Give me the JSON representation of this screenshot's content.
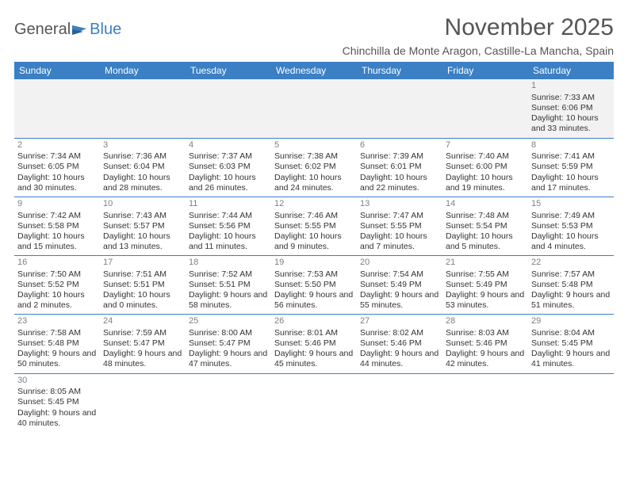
{
  "logo": {
    "text1": "General",
    "text2": "Blue"
  },
  "title": "November 2025",
  "subtitle": "Chinchilla de Monte Aragon, Castille-La Mancha, Spain",
  "columns": [
    "Sunday",
    "Monday",
    "Tuesday",
    "Wednesday",
    "Thursday",
    "Friday",
    "Saturday"
  ],
  "colors": {
    "header_bg": "#3b7fc4",
    "header_text": "#ffffff",
    "line": "#3b7fc4",
    "daynum": "#808080",
    "grey_row": "#f2f2f2"
  },
  "layout": {
    "first_day_column": 6,
    "days_in_month": 30
  },
  "days": {
    "1": {
      "sunrise": "7:33 AM",
      "sunset": "6:06 PM",
      "daylight": "10 hours and 33 minutes."
    },
    "2": {
      "sunrise": "7:34 AM",
      "sunset": "6:05 PM",
      "daylight": "10 hours and 30 minutes."
    },
    "3": {
      "sunrise": "7:36 AM",
      "sunset": "6:04 PM",
      "daylight": "10 hours and 28 minutes."
    },
    "4": {
      "sunrise": "7:37 AM",
      "sunset": "6:03 PM",
      "daylight": "10 hours and 26 minutes."
    },
    "5": {
      "sunrise": "7:38 AM",
      "sunset": "6:02 PM",
      "daylight": "10 hours and 24 minutes."
    },
    "6": {
      "sunrise": "7:39 AM",
      "sunset": "6:01 PM",
      "daylight": "10 hours and 22 minutes."
    },
    "7": {
      "sunrise": "7:40 AM",
      "sunset": "6:00 PM",
      "daylight": "10 hours and 19 minutes."
    },
    "8": {
      "sunrise": "7:41 AM",
      "sunset": "5:59 PM",
      "daylight": "10 hours and 17 minutes."
    },
    "9": {
      "sunrise": "7:42 AM",
      "sunset": "5:58 PM",
      "daylight": "10 hours and 15 minutes."
    },
    "10": {
      "sunrise": "7:43 AM",
      "sunset": "5:57 PM",
      "daylight": "10 hours and 13 minutes."
    },
    "11": {
      "sunrise": "7:44 AM",
      "sunset": "5:56 PM",
      "daylight": "10 hours and 11 minutes."
    },
    "12": {
      "sunrise": "7:46 AM",
      "sunset": "5:55 PM",
      "daylight": "10 hours and 9 minutes."
    },
    "13": {
      "sunrise": "7:47 AM",
      "sunset": "5:55 PM",
      "daylight": "10 hours and 7 minutes."
    },
    "14": {
      "sunrise": "7:48 AM",
      "sunset": "5:54 PM",
      "daylight": "10 hours and 5 minutes."
    },
    "15": {
      "sunrise": "7:49 AM",
      "sunset": "5:53 PM",
      "daylight": "10 hours and 4 minutes."
    },
    "16": {
      "sunrise": "7:50 AM",
      "sunset": "5:52 PM",
      "daylight": "10 hours and 2 minutes."
    },
    "17": {
      "sunrise": "7:51 AM",
      "sunset": "5:51 PM",
      "daylight": "10 hours and 0 minutes."
    },
    "18": {
      "sunrise": "7:52 AM",
      "sunset": "5:51 PM",
      "daylight": "9 hours and 58 minutes."
    },
    "19": {
      "sunrise": "7:53 AM",
      "sunset": "5:50 PM",
      "daylight": "9 hours and 56 minutes."
    },
    "20": {
      "sunrise": "7:54 AM",
      "sunset": "5:49 PM",
      "daylight": "9 hours and 55 minutes."
    },
    "21": {
      "sunrise": "7:55 AM",
      "sunset": "5:49 PM",
      "daylight": "9 hours and 53 minutes."
    },
    "22": {
      "sunrise": "7:57 AM",
      "sunset": "5:48 PM",
      "daylight": "9 hours and 51 minutes."
    },
    "23": {
      "sunrise": "7:58 AM",
      "sunset": "5:48 PM",
      "daylight": "9 hours and 50 minutes."
    },
    "24": {
      "sunrise": "7:59 AM",
      "sunset": "5:47 PM",
      "daylight": "9 hours and 48 minutes."
    },
    "25": {
      "sunrise": "8:00 AM",
      "sunset": "5:47 PM",
      "daylight": "9 hours and 47 minutes."
    },
    "26": {
      "sunrise": "8:01 AM",
      "sunset": "5:46 PM",
      "daylight": "9 hours and 45 minutes."
    },
    "27": {
      "sunrise": "8:02 AM",
      "sunset": "5:46 PM",
      "daylight": "9 hours and 44 minutes."
    },
    "28": {
      "sunrise": "8:03 AM",
      "sunset": "5:46 PM",
      "daylight": "9 hours and 42 minutes."
    },
    "29": {
      "sunrise": "8:04 AM",
      "sunset": "5:45 PM",
      "daylight": "9 hours and 41 minutes."
    },
    "30": {
      "sunrise": "8:05 AM",
      "sunset": "5:45 PM",
      "daylight": "9 hours and 40 minutes."
    }
  }
}
